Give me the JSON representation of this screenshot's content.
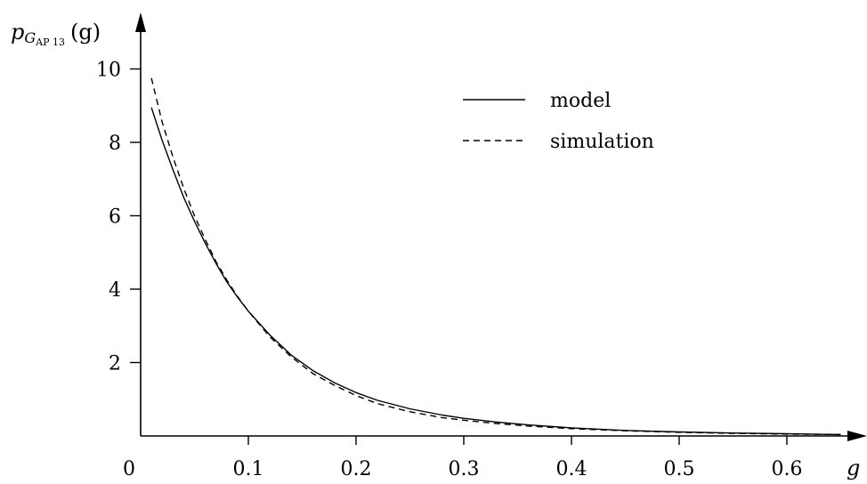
{
  "chart_data": {
    "type": "line",
    "xlabel": "g",
    "ylabel": {
      "base": "p",
      "sub_var": "G",
      "sub_text": "AP 13",
      "arg": "(g)"
    },
    "xlim": [
      0,
      0.65
    ],
    "ylim": [
      0,
      10.5
    ],
    "x_ticks": [
      0.1,
      0.2,
      0.3,
      0.4,
      0.5,
      0.6
    ],
    "x_tick_labels": [
      "0.1",
      "0.2",
      "0.3",
      "0.4",
      "0.5",
      "0.6"
    ],
    "origin_label": "0",
    "y_ticks": [
      2,
      4,
      6,
      8,
      10
    ],
    "y_tick_labels": [
      "2",
      "4",
      "6",
      "8",
      "10"
    ],
    "legend_position": "top-right",
    "grid": false,
    "series": [
      {
        "name": "model",
        "style": "solid",
        "x": [
          0.01,
          0.02,
          0.03,
          0.04,
          0.05,
          0.06,
          0.07,
          0.08,
          0.09,
          0.1,
          0.12,
          0.14,
          0.16,
          0.18,
          0.2,
          0.22,
          0.25,
          0.28,
          0.3,
          0.33,
          0.36,
          0.4,
          0.45,
          0.5,
          0.55,
          0.6,
          0.65
        ],
        "y": [
          8.95,
          8.05,
          7.25,
          6.5,
          5.85,
          5.25,
          4.7,
          4.2,
          3.78,
          3.4,
          2.75,
          2.2,
          1.78,
          1.45,
          1.18,
          0.97,
          0.74,
          0.57,
          0.48,
          0.38,
          0.3,
          0.22,
          0.15,
          0.11,
          0.08,
          0.06,
          0.04
        ]
      },
      {
        "name": "simulation",
        "style": "dashed",
        "x": [
          0.01,
          0.02,
          0.03,
          0.04,
          0.05,
          0.06,
          0.07,
          0.08,
          0.09,
          0.1,
          0.12,
          0.14,
          0.16,
          0.18,
          0.2,
          0.22,
          0.25,
          0.28,
          0.3,
          0.33,
          0.36,
          0.4,
          0.45,
          0.5,
          0.55,
          0.6,
          0.65
        ],
        "y": [
          9.75,
          8.55,
          7.6,
          6.75,
          6.0,
          5.35,
          4.75,
          4.25,
          3.8,
          3.4,
          2.7,
          2.15,
          1.7,
          1.38,
          1.1,
          0.88,
          0.66,
          0.5,
          0.43,
          0.34,
          0.27,
          0.2,
          0.14,
          0.1,
          0.07,
          0.05,
          0.04
        ]
      }
    ]
  }
}
